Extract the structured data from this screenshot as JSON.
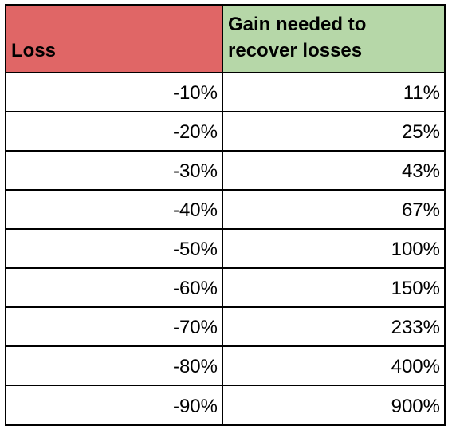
{
  "table": {
    "headers": {
      "loss": "Loss",
      "gain": "Gain needed to recover losses"
    },
    "rows": [
      {
        "loss": "-10%",
        "gain": "11%"
      },
      {
        "loss": "-20%",
        "gain": "25%"
      },
      {
        "loss": "-30%",
        "gain": "43%"
      },
      {
        "loss": "-40%",
        "gain": "67%"
      },
      {
        "loss": "-50%",
        "gain": "100%"
      },
      {
        "loss": "-60%",
        "gain": "150%"
      },
      {
        "loss": "-70%",
        "gain": "233%"
      },
      {
        "loss": "-80%",
        "gain": "400%"
      },
      {
        "loss": "-90%",
        "gain": "900%"
      }
    ],
    "colors": {
      "loss_header_bg": "#e06666",
      "gain_header_bg": "#b6d7a8",
      "border": "#000000"
    }
  }
}
